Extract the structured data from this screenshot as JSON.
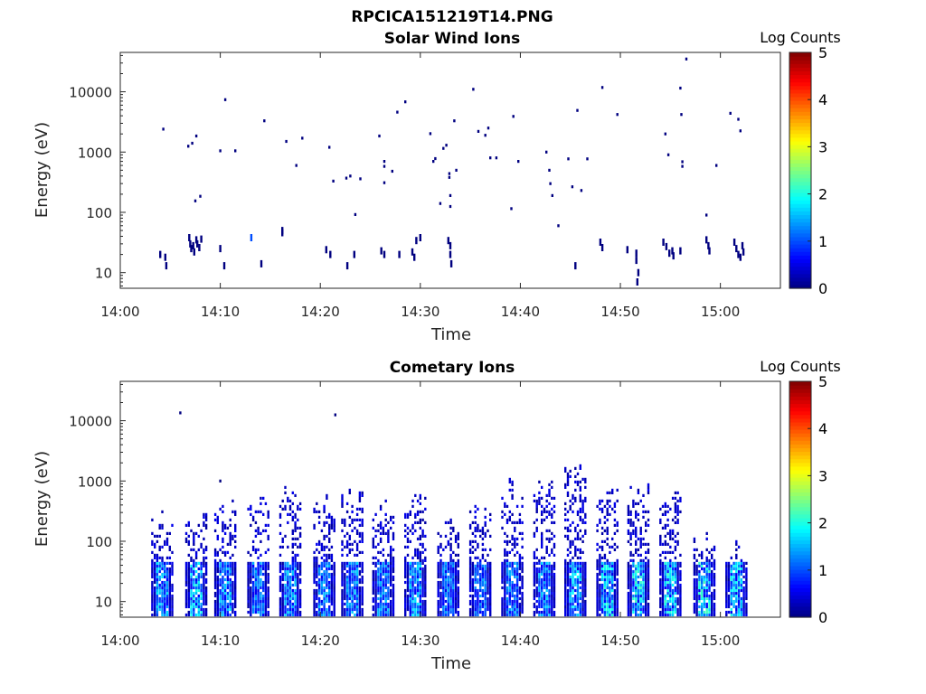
{
  "figure_title": "RPCICA151219T14.PNG",
  "chart_data": [
    {
      "type": "heatmap",
      "name": "solar-wind",
      "title": "Solar Wind Ions",
      "xlabel": "Time",
      "ylabel": "Energy (eV)",
      "x_range_minutes": [
        0,
        66
      ],
      "x_ticks": [
        "14:00",
        "14:10",
        "14:20",
        "14:30",
        "14:40",
        "14:50",
        "15:00"
      ],
      "y_scale": "log",
      "y_range_eV": [
        5.5,
        45000
      ],
      "y_ticks": [
        "10",
        "100",
        "1000",
        "10000"
      ],
      "colorbar": {
        "label": "Log Counts",
        "range": [
          0,
          5
        ],
        "ticks": [
          "0",
          "1",
          "2",
          "3",
          "4",
          "5"
        ]
      },
      "events": [
        [
          4.3,
          2400,
          0
        ],
        [
          6.8,
          1250,
          0
        ],
        [
          7.2,
          1400,
          0
        ],
        [
          7.6,
          1850,
          0
        ],
        [
          7.5,
          155,
          0
        ],
        [
          8.0,
          185,
          0
        ],
        [
          10.0,
          1050,
          0
        ],
        [
          10.5,
          7400,
          0
        ],
        [
          11.5,
          1050,
          0
        ],
        [
          14.4,
          3300,
          0
        ],
        [
          16.6,
          1500,
          0
        ],
        [
          17.6,
          600,
          0
        ],
        [
          18.2,
          1700,
          0
        ],
        [
          20.9,
          1200,
          0
        ],
        [
          21.3,
          330,
          0
        ],
        [
          22.6,
          370,
          0
        ],
        [
          23.0,
          400,
          0
        ],
        [
          23.5,
          92,
          0
        ],
        [
          24.0,
          360,
          0
        ],
        [
          25.9,
          1850,
          0
        ],
        [
          26.4,
          700,
          0
        ],
        [
          26.4,
          580,
          0
        ],
        [
          26.4,
          310,
          0
        ],
        [
          27.2,
          480,
          0
        ],
        [
          27.7,
          4600,
          0
        ],
        [
          28.5,
          6800,
          0
        ],
        [
          31.0,
          2020,
          0
        ],
        [
          31.3,
          700,
          0
        ],
        [
          31.5,
          780,
          0
        ],
        [
          32.0,
          140,
          0
        ],
        [
          32.3,
          1150,
          0
        ],
        [
          32.6,
          1300,
          0
        ],
        [
          32.9,
          440,
          0
        ],
        [
          32.9,
          380,
          0
        ],
        [
          33.0,
          125,
          0
        ],
        [
          33.0,
          190,
          0
        ],
        [
          33.4,
          3300,
          0
        ],
        [
          33.6,
          500,
          0
        ],
        [
          35.3,
          11000,
          0
        ],
        [
          35.8,
          2200,
          0
        ],
        [
          36.5,
          1900,
          0
        ],
        [
          36.8,
          2500,
          0
        ],
        [
          37.0,
          800,
          0
        ],
        [
          37.6,
          800,
          0
        ],
        [
          39.1,
          115,
          0
        ],
        [
          39.3,
          3900,
          0
        ],
        [
          39.8,
          700,
          0
        ],
        [
          42.6,
          1000,
          0
        ],
        [
          42.9,
          500,
          0
        ],
        [
          43.0,
          300,
          0
        ],
        [
          43.2,
          190,
          0
        ],
        [
          43.8,
          60,
          0
        ],
        [
          44.8,
          770,
          0
        ],
        [
          45.2,
          265,
          0
        ],
        [
          45.7,
          4900,
          0
        ],
        [
          46.1,
          230,
          0
        ],
        [
          46.7,
          770,
          0
        ],
        [
          48.2,
          11800,
          0
        ],
        [
          49.7,
          4200,
          0
        ],
        [
          54.5,
          2000,
          0
        ],
        [
          54.8,
          900,
          0
        ],
        [
          56.0,
          11500,
          0
        ],
        [
          56.1,
          4200,
          0
        ],
        [
          56.2,
          690,
          0
        ],
        [
          56.2,
          580,
          0
        ],
        [
          58.6,
          90,
          0
        ],
        [
          59.6,
          600,
          0
        ],
        [
          61.0,
          4400,
          0
        ],
        [
          61.8,
          3500,
          0
        ],
        [
          62.0,
          2250,
          0
        ],
        [
          16.2,
          50,
          0
        ],
        [
          16.2,
          46,
          0
        ],
        [
          56.6,
          35000,
          0
        ],
        [
          4.0,
          20,
          0
        ],
        [
          4.5,
          18,
          0
        ],
        [
          4.6,
          13,
          0
        ],
        [
          6.9,
          38,
          0
        ],
        [
          7.0,
          30,
          0
        ],
        [
          7.1,
          25,
          0
        ],
        [
          7.3,
          28,
          0
        ],
        [
          7.4,
          22,
          0
        ],
        [
          7.6,
          35,
          0
        ],
        [
          7.7,
          30,
          0
        ],
        [
          7.9,
          26,
          0
        ],
        [
          8.1,
          36,
          0
        ],
        [
          10.4,
          13,
          0
        ],
        [
          10.0,
          25,
          0
        ],
        [
          14.1,
          14,
          0
        ],
        [
          20.6,
          24,
          0
        ],
        [
          21.0,
          20,
          0
        ],
        [
          22.7,
          13,
          0
        ],
        [
          23.4,
          20,
          0
        ],
        [
          26.1,
          23,
          0
        ],
        [
          26.4,
          20,
          0
        ],
        [
          27.9,
          20,
          0
        ],
        [
          29.2,
          22,
          0
        ],
        [
          29.6,
          34,
          0
        ],
        [
          30.0,
          38,
          0
        ],
        [
          29.4,
          18,
          0
        ],
        [
          32.8,
          34,
          0
        ],
        [
          33.0,
          28,
          0
        ],
        [
          33.0,
          20,
          0
        ],
        [
          33.1,
          14,
          0
        ],
        [
          45.5,
          13,
          0
        ],
        [
          48.0,
          32,
          0
        ],
        [
          48.2,
          26,
          0
        ],
        [
          50.7,
          24,
          0
        ],
        [
          51.6,
          21,
          0
        ],
        [
          51.6,
          16,
          0
        ],
        [
          51.7,
          7,
          0
        ],
        [
          51.8,
          10,
          0
        ],
        [
          54.3,
          32,
          0
        ],
        [
          54.6,
          27,
          0
        ],
        [
          54.9,
          21,
          0
        ],
        [
          55.2,
          23,
          0
        ],
        [
          55.3,
          19,
          0
        ],
        [
          56.0,
          23,
          0
        ],
        [
          58.6,
          35,
          0
        ],
        [
          58.8,
          28,
          0
        ],
        [
          58.9,
          23,
          0
        ],
        [
          61.4,
          32,
          0
        ],
        [
          61.6,
          25,
          0
        ],
        [
          61.8,
          20,
          0
        ],
        [
          62.0,
          18,
          0
        ],
        [
          62.3,
          22,
          0
        ],
        [
          62.2,
          28,
          0
        ],
        [
          13.1,
          38,
          1
        ]
      ]
    },
    {
      "type": "heatmap",
      "name": "cometary",
      "title": "Cometary Ions",
      "xlabel": "Time",
      "ylabel": "Energy (eV)",
      "x_range_minutes": [
        0,
        66
      ],
      "x_ticks": [
        "14:00",
        "14:10",
        "14:20",
        "14:30",
        "14:40",
        "14:50",
        "15:00"
      ],
      "y_scale": "log",
      "y_range_eV": [
        5.5,
        45000
      ],
      "y_ticks": [
        "10",
        "100",
        "1000",
        "10000"
      ],
      "colorbar": {
        "label": "Log Counts",
        "range": [
          0,
          5
        ],
        "ticks": [
          "0",
          "1",
          "2",
          "3",
          "4",
          "5"
        ]
      },
      "bursts": [
        {
          "t": 4.2,
          "ymax": 420,
          "peak": 1.3
        },
        {
          "t": 7.6,
          "ymax": 480,
          "peak": 1.6
        },
        {
          "t": 10.5,
          "ymax": 620,
          "peak": 1.3
        },
        {
          "t": 13.8,
          "ymax": 700,
          "peak": 1.0
        },
        {
          "t": 17.0,
          "ymax": 1200,
          "peak": 1.2
        },
        {
          "t": 20.4,
          "ymax": 800,
          "peak": 1.1
        },
        {
          "t": 23.2,
          "ymax": 950,
          "peak": 1.2
        },
        {
          "t": 26.3,
          "ymax": 500,
          "peak": 1.1
        },
        {
          "t": 29.5,
          "ymax": 800,
          "peak": 1.3
        },
        {
          "t": 32.8,
          "ymax": 300,
          "peak": 1.0
        },
        {
          "t": 36.0,
          "ymax": 550,
          "peak": 1.0
        },
        {
          "t": 39.2,
          "ymax": 1300,
          "peak": 1.1
        },
        {
          "t": 42.4,
          "ymax": 1250,
          "peak": 1.2
        },
        {
          "t": 45.5,
          "ymax": 2800,
          "peak": 1.4
        },
        {
          "t": 48.7,
          "ymax": 1050,
          "peak": 1.6
        },
        {
          "t": 51.8,
          "ymax": 1350,
          "peak": 1.7
        },
        {
          "t": 55.0,
          "ymax": 850,
          "peak": 1.7
        },
        {
          "t": 58.4,
          "ymax": 200,
          "peak": 1.7
        },
        {
          "t": 61.6,
          "ymax": 120,
          "peak": 1.6
        }
      ],
      "events": [
        [
          6.0,
          13500,
          0
        ],
        [
          21.5,
          12500,
          0
        ],
        [
          10.0,
          1000,
          0
        ]
      ]
    }
  ]
}
